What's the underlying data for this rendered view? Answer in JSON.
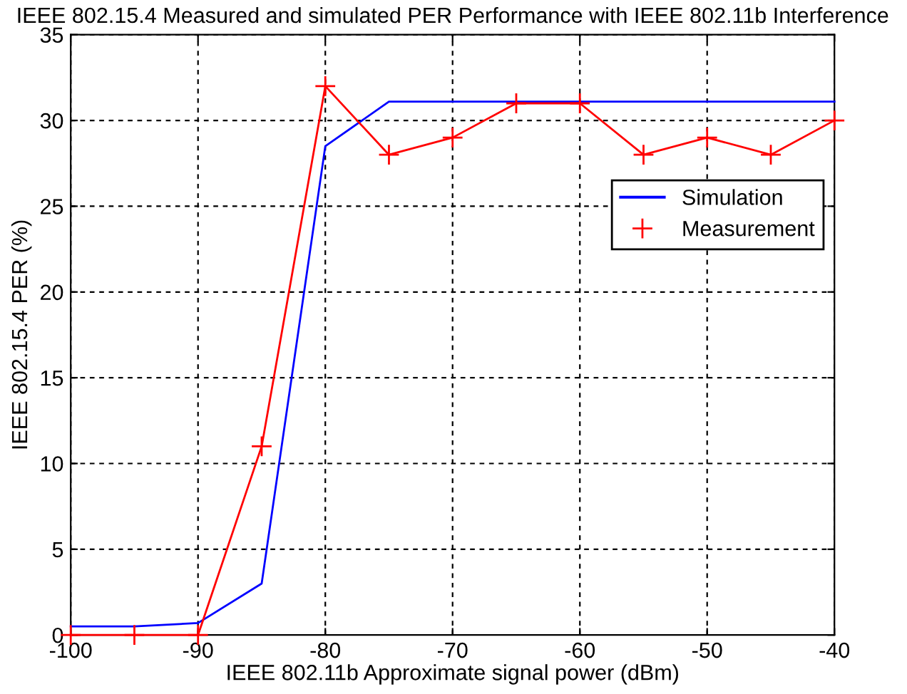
{
  "chart_data": {
    "type": "line",
    "title": "IEEE 802.15.4 Measured and simulated PER Performance with IEEE 802.11b Interference",
    "xlabel": "IEEE 802.11b Approximate signal power (dBm)",
    "ylabel": "IEEE 802.15.4 PER (%)",
    "x": [
      -100,
      -95,
      -90,
      -85,
      -80,
      -75,
      -70,
      -65,
      -60,
      -55,
      -50,
      -45,
      -40
    ],
    "series": [
      {
        "name": "Simulation",
        "color": "#0000ff",
        "marker": "none",
        "values": [
          0.5,
          0.5,
          0.7,
          3,
          28.5,
          31.1,
          31.1,
          31.1,
          31.1,
          31.1,
          31.1,
          31.1,
          31.1
        ]
      },
      {
        "name": "Measurement",
        "color": "#ff0000",
        "marker": "cross",
        "values": [
          0,
          0,
          0,
          11,
          32,
          28,
          29,
          31,
          31,
          28,
          29,
          28,
          30
        ]
      }
    ],
    "xlim": [
      -100,
      -40
    ],
    "ylim": [
      0,
      35
    ],
    "xticks": [
      -100,
      -90,
      -80,
      -70,
      -60,
      -50,
      -40
    ],
    "yticks": [
      0,
      5,
      10,
      15,
      20,
      25,
      30,
      35
    ],
    "grid": true,
    "legend": "right",
    "line_style": "solid"
  }
}
